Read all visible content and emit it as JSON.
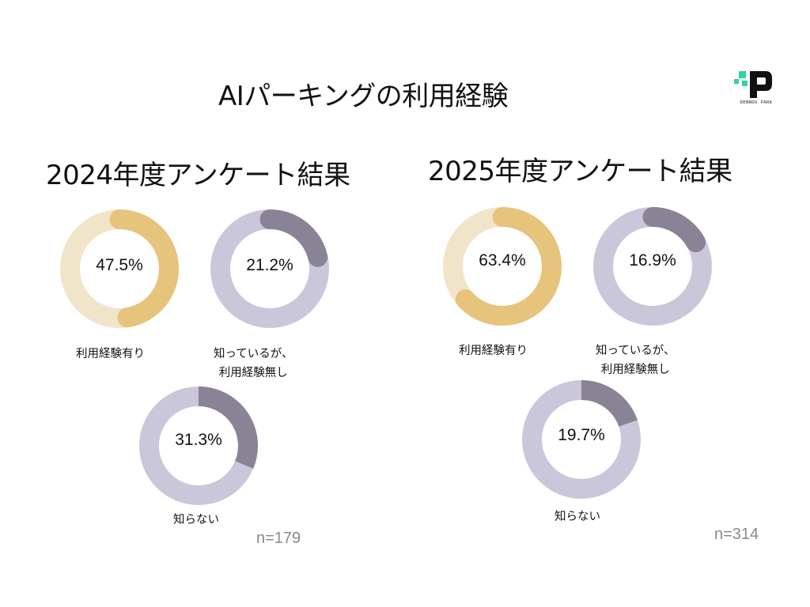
{
  "slide": {
    "title": "AIパーキングの利用経験",
    "logo_text": "DENNOU PARK"
  },
  "colors": {
    "yellow_track": "#f1e5c9",
    "yellow_fill": "#e6c47c",
    "gray_track": "#cbc7da",
    "gray_fill": "#8a8396"
  },
  "chart_data": [
    {
      "type": "pie",
      "title": "2024年度アンケート結果",
      "n_label": "n=179",
      "categories": [
        "利用経験有り",
        "知っているが、利用経験無し",
        "知らない"
      ],
      "values": [
        47.5,
        21.2,
        31.3
      ],
      "value_labels": [
        "47.5%",
        "21.2%",
        "31.3%"
      ],
      "label_lines": [
        [
          "利用経験有り"
        ],
        [
          "知っているが、",
          "利用経験無し"
        ],
        [
          "知らない"
        ]
      ]
    },
    {
      "type": "pie",
      "title": "2025年度アンケート結果",
      "n_label": "n=314",
      "categories": [
        "利用経験有り",
        "知っているが、利用経験無し",
        "知らない"
      ],
      "values": [
        63.4,
        16.9,
        19.7
      ],
      "value_labels": [
        "63.4%",
        "16.9%",
        "19.7%"
      ],
      "label_lines": [
        [
          "利用経験有り"
        ],
        [
          "知っているが、",
          "利用経験無し"
        ],
        [
          "知らない"
        ]
      ]
    }
  ]
}
